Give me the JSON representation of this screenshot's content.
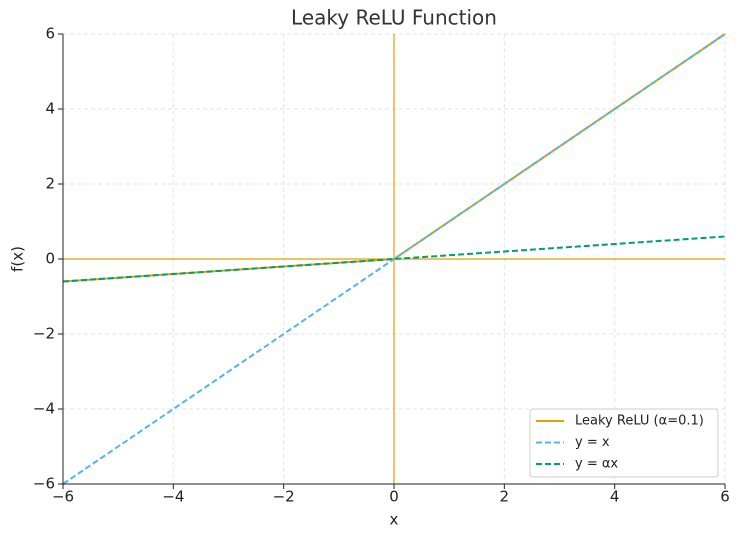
{
  "chart_data": {
    "type": "line",
    "title": "Leaky ReLU Function",
    "x_label": "x",
    "y_label": "f(x)",
    "x": [
      -6,
      0,
      6
    ],
    "series": [
      {
        "name": "Leaky ReLU (α=0.1)",
        "color": "#E69F00",
        "dash": false,
        "values": [
          -0.6,
          0,
          6
        ]
      },
      {
        "name": "y = x",
        "color": "#56B4E9",
        "dash": true,
        "values": [
          -6,
          0,
          6
        ]
      },
      {
        "name": "y = αx",
        "color": "#009E73",
        "dash": true,
        "values": [
          -0.6,
          0,
          0.6
        ]
      }
    ],
    "xlim": [
      -6,
      6
    ],
    "ylim": [
      -6,
      6
    ],
    "xticks": [
      {
        "value": -6,
        "label": "−6"
      },
      {
        "value": -4,
        "label": "−4"
      },
      {
        "value": -2,
        "label": "−2"
      },
      0,
      2,
      4,
      6
    ],
    "yticks": [
      {
        "value": -6,
        "label": "−6"
      },
      {
        "value": -4,
        "label": "−4"
      },
      {
        "value": -2,
        "label": "−2"
      },
      0,
      2,
      4,
      6
    ],
    "hlines": [
      0
    ],
    "vlines": [
      0
    ],
    "ref_color": "#E69F00",
    "grid": true,
    "legend": "lower right"
  }
}
